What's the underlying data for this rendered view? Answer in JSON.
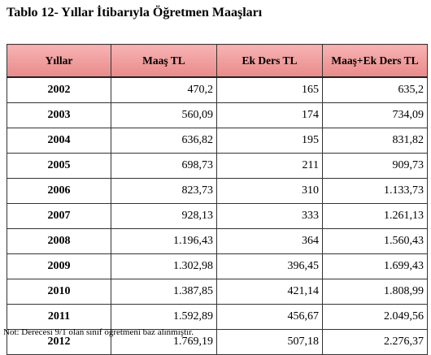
{
  "title": "Tablo 12- Yıllar İtibarıyla Öğretmen Maaşları",
  "table": {
    "headers": [
      "Yıllar",
      "Maaş TL",
      "Ek Ders TL",
      "Maaş+Ek Ders TL"
    ],
    "rows": [
      [
        "2002",
        "470,2",
        "165",
        "635,2"
      ],
      [
        "2003",
        "560,09",
        "174",
        "734,09"
      ],
      [
        "2004",
        "636,82",
        "195",
        "831,82"
      ],
      [
        "2005",
        "698,73",
        "211",
        "909,73"
      ],
      [
        "2006",
        "823,73",
        "310",
        "1.133,73"
      ],
      [
        "2007",
        "928,13",
        "333",
        "1.261,13"
      ],
      [
        "2008",
        "1.196,43",
        "364",
        "1.560,43"
      ],
      [
        "2009",
        "1.302,98",
        "396,45",
        "1.699,43"
      ],
      [
        "2010",
        "1.387,85",
        "421,14",
        "1.808,99"
      ],
      [
        "2011",
        "1.592,89",
        "456,67",
        "2.049,56"
      ],
      [
        "2012",
        "1.769,19",
        "507,18",
        "2.276,37"
      ]
    ]
  },
  "note": "Not: Derecesi 9/1 olan sınıf öğretmeni baz alınmıştır.",
  "colors": {
    "header_bg": "#ee9a9a",
    "border": "#333333"
  }
}
